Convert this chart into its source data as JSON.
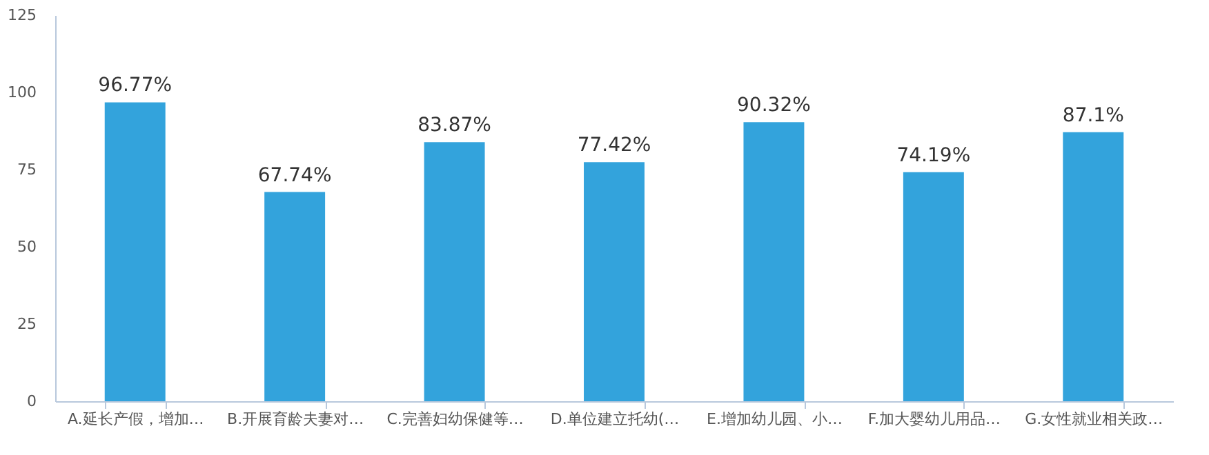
{
  "chart_data": {
    "type": "bar",
    "categories": [
      "A.延长产假，增加…",
      "B.开展育龄夫妻对…",
      "C.完善妇幼保健等…",
      "D.单位建立托幼(…",
      "E.增加幼儿园、小…",
      "F.加大婴幼儿用品…",
      "G.女性就业相关政…"
    ],
    "values": [
      96.77,
      67.74,
      83.87,
      77.42,
      90.32,
      74.19,
      87.1
    ],
    "value_labels": [
      "96.77%",
      "67.74%",
      "83.87%",
      "77.42%",
      "90.32%",
      "74.19%",
      "87.1%"
    ],
    "color": "#33a3dc",
    "ylim": [
      0,
      125
    ],
    "yticks": [
      0,
      25,
      50,
      75,
      100,
      125
    ],
    "grid": false
  }
}
